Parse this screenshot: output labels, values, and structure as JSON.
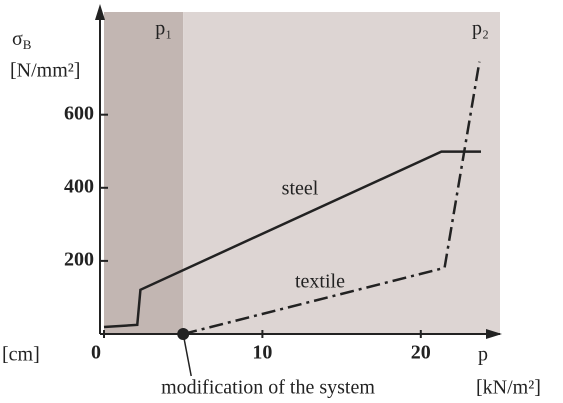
{
  "chart_data": {
    "type": "line",
    "y_label": {
      "symbol": "σ",
      "subscript": "B",
      "unit": "[N/mm²]"
    },
    "x_label": {
      "symbol": "p",
      "unit": "[kN/m²]"
    },
    "xlim": [
      0,
      25
    ],
    "ylim": [
      0,
      870
    ],
    "xticks": [
      0,
      10,
      20
    ],
    "yticks": [
      200,
      400,
      600
    ],
    "regions": [
      {
        "label": "p₁",
        "from": 0,
        "to": 5,
        "color": "#c2b6b2"
      },
      {
        "label": "p₂",
        "from": 5,
        "to": 25,
        "color": "#ddd5d3"
      }
    ],
    "series": [
      {
        "name": "steel",
        "color": "#222222",
        "x": [
          0,
          2.1,
          2.3,
          21.3,
          23.8
        ],
        "values": [
          19,
          25,
          121,
          499,
          499
        ]
      },
      {
        "name": "textile",
        "color": "#222222",
        "x": [
          5,
          21.5,
          23.7
        ],
        "values": [
          0,
          181,
          745
        ]
      }
    ],
    "annotations": {
      "modification": "modification of the system",
      "left_unit": "[cm]"
    }
  }
}
